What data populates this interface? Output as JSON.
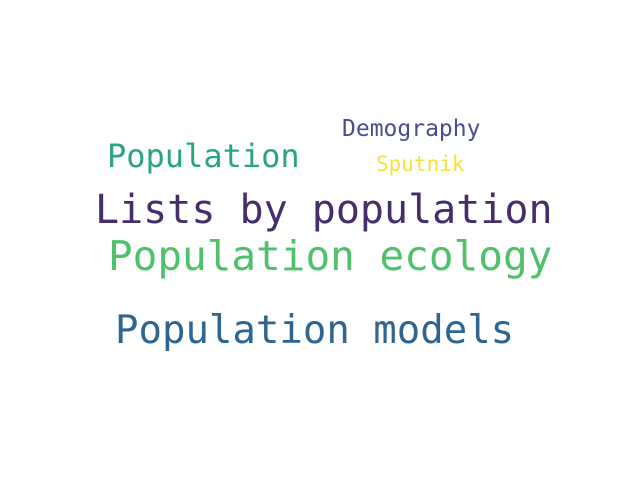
{
  "words": [
    {
      "text": "Demography",
      "color": "#4a4d8f"
    },
    {
      "text": "Population",
      "color": "#2aa483"
    },
    {
      "text": "Sputnik",
      "color": "#f6e33a"
    },
    {
      "text": "Lists by population",
      "color": "#462d6b"
    },
    {
      "text": "Population ecology",
      "color": "#4fc16b"
    },
    {
      "text": "Population models",
      "color": "#2f6591"
    }
  ]
}
